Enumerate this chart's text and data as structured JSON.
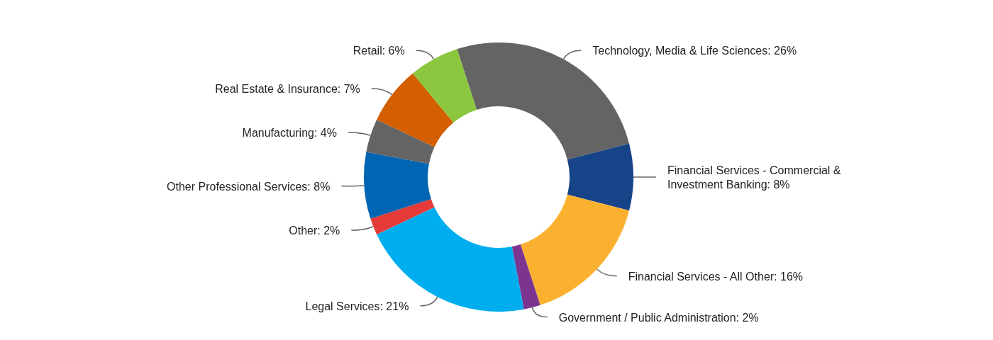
{
  "chart_data": {
    "type": "donut",
    "categories": [
      "Technology, Media & Life Sciences",
      "Financial Services - Commercial & Investment Banking",
      "Financial Services - All Other",
      "Government / Public Administration",
      "Legal Services",
      "Other",
      "Other Professional Services",
      "Manufacturing",
      "Real Estate & Insurance",
      "Retail"
    ],
    "values": [
      26,
      8,
      16,
      2,
      21,
      2,
      8,
      4,
      7,
      6
    ],
    "colors": [
      "#646464",
      "#174489",
      "#fbb130",
      "#7b3590",
      "#00aeef",
      "#e53a38",
      "#0066b3",
      "#646464",
      "#d35f00",
      "#8dc63f"
    ],
    "value_labels": [
      "26%",
      "8%",
      "16%",
      "2%",
      "21%",
      "2%",
      "8%",
      "4%",
      "7%",
      "6%"
    ],
    "legend": false
  }
}
